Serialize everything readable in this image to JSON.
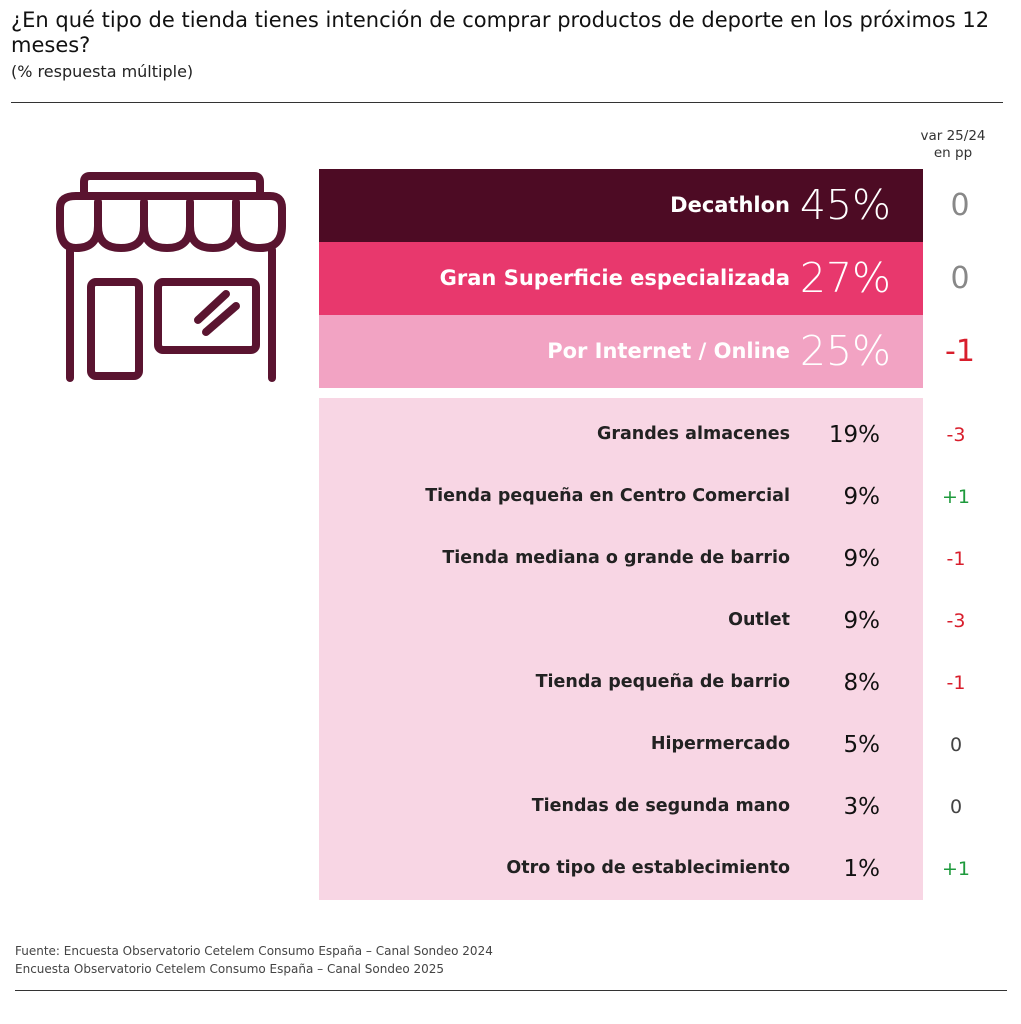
{
  "title": "¿En qué tipo de tienda tienes intención de comprar productos de deporte en los próximos 12 meses?",
  "subtitle": "(% respuesta múltiple)",
  "var_header": [
    "var 25/24",
    "en pp"
  ],
  "colors": {
    "decathlon": "#4d0b24",
    "gran_superficie": "#e8386d",
    "internet": "#f2a3c3",
    "lower_panel": "#f8d6e4",
    "neutral": "#777777",
    "negative": "#d81e2c",
    "positive": "#1e9a3c",
    "icon": "#5a1430"
  },
  "icon": "store-icon",
  "chart_data": {
    "type": "table",
    "title": "¿En qué tipo de tienda tienes intención de comprar productos de deporte en los próximos 12 meses?",
    "unit": "%",
    "rows": [
      {
        "label": "Decathlon",
        "value": 45,
        "value_label": "45%",
        "var": 0,
        "var_label": "0",
        "highlight": true
      },
      {
        "label": "Gran Superficie especializada",
        "value": 27,
        "value_label": "27%",
        "var": 0,
        "var_label": "0",
        "highlight": true
      },
      {
        "label": "Por Internet / Online",
        "value": 25,
        "value_label": "25%",
        "var": -1,
        "var_label": "-1",
        "highlight": true
      },
      {
        "label": "Grandes almacenes",
        "value": 19,
        "value_label": "19%",
        "var": -3,
        "var_label": "-3"
      },
      {
        "label": "Tienda pequeña en Centro Comercial",
        "value": 9,
        "value_label": "9%",
        "var": 1,
        "var_label": "+1"
      },
      {
        "label": "Tienda mediana o grande de barrio",
        "value": 9,
        "value_label": "9%",
        "var": -1,
        "var_label": "-1"
      },
      {
        "label": "Outlet",
        "value": 9,
        "value_label": "9%",
        "var": -3,
        "var_label": "-3"
      },
      {
        "label": "Tienda pequeña de barrio",
        "value": 8,
        "value_label": "8%",
        "var": -1,
        "var_label": "-1"
      },
      {
        "label": "Hipermercado",
        "value": 5,
        "value_label": "5%",
        "var": 0,
        "var_label": "0"
      },
      {
        "label": "Tiendas de segunda mano",
        "value": 3,
        "value_label": "3%",
        "var": 0,
        "var_label": "0"
      },
      {
        "label": "Otro tipo de establecimiento",
        "value": 1,
        "value_label": "1%",
        "var": 1,
        "var_label": "+1"
      }
    ]
  },
  "footer": {
    "line1": "Fuente: Encuesta Observatorio Cetelem Consumo España – Canal Sondeo 2024",
    "line2": "Encuesta Observatorio Cetelem Consumo España – Canal Sondeo 2025"
  }
}
